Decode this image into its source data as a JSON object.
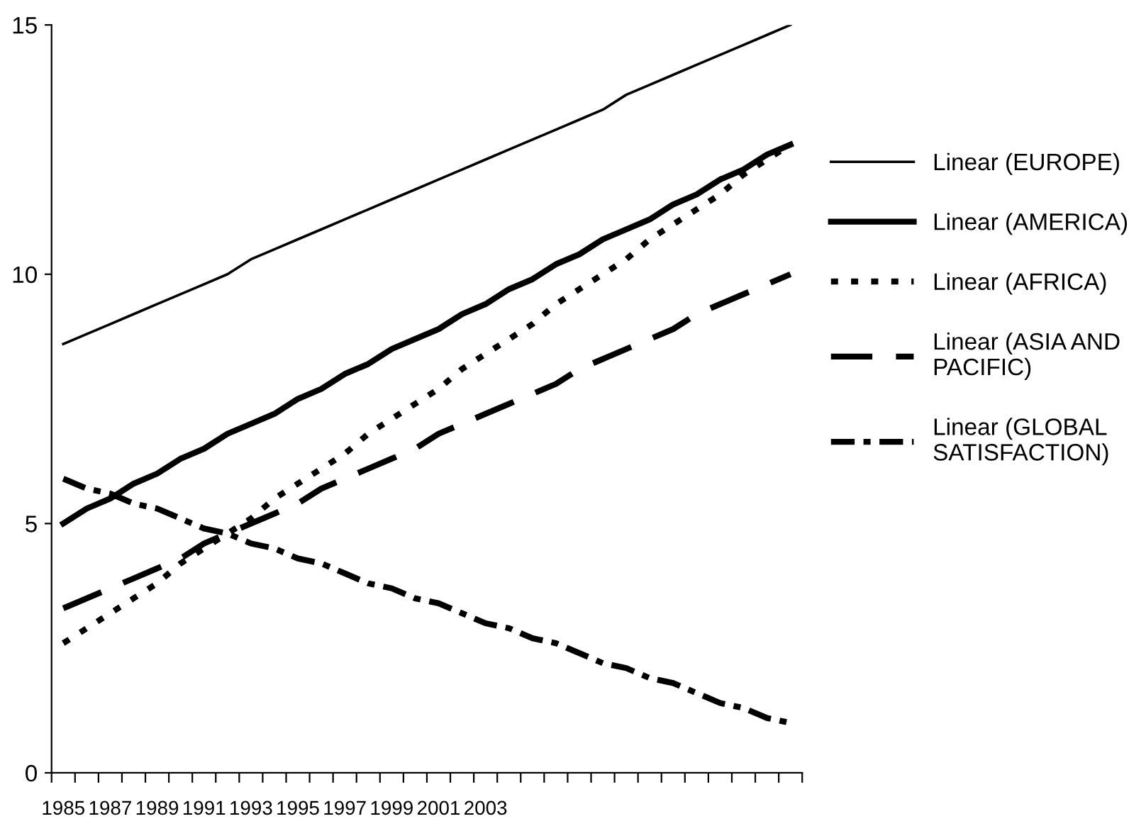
{
  "chart_data": {
    "type": "line",
    "categories": [
      "1985",
      null,
      "1987",
      null,
      "1989",
      null,
      "1991",
      null,
      "1993",
      null,
      "1995",
      null,
      "1997",
      null,
      "1999",
      null,
      "2001",
      null,
      "2003",
      null,
      null,
      null,
      null,
      null,
      null,
      null,
      null,
      null,
      null,
      null,
      null,
      null
    ],
    "series": [
      {
        "name": "Linear (EUROPE)",
        "color": "#000000",
        "line_style": "solid",
        "values": [
          8.6,
          8.8,
          9.0,
          9.2,
          9.4,
          9.6,
          9.8,
          10.0,
          10.3,
          10.5,
          10.7,
          10.9,
          11.1,
          11.3,
          11.5,
          11.7,
          11.9,
          12.1,
          12.3,
          12.5,
          12.7,
          12.9,
          13.1,
          13.3,
          13.6,
          13.8,
          14.0,
          14.2,
          14.4,
          14.6,
          14.8,
          15.0
        ]
      },
      {
        "name": "Linear (AMERICA)",
        "color": "#000000",
        "line_style": "solid",
        "values": [
          5.0,
          5.3,
          5.5,
          5.8,
          6.0,
          6.3,
          6.5,
          6.8,
          7.0,
          7.2,
          7.5,
          7.7,
          8.0,
          8.2,
          8.5,
          8.7,
          8.9,
          9.2,
          9.4,
          9.7,
          9.9,
          10.2,
          10.4,
          10.7,
          10.9,
          11.1,
          11.4,
          11.6,
          11.9,
          12.1,
          12.4,
          12.6
        ]
      },
      {
        "name": "Linear (AFRICA)",
        "color": "#000000",
        "line_style": "dotted",
        "values": [
          2.6,
          2.9,
          3.2,
          3.5,
          3.8,
          4.2,
          4.5,
          4.8,
          5.1,
          5.5,
          5.8,
          6.1,
          6.4,
          6.8,
          7.1,
          7.4,
          7.7,
          8.1,
          8.4,
          8.7,
          9.0,
          9.4,
          9.7,
          10.0,
          10.3,
          10.7,
          11.0,
          11.3,
          11.6,
          12.0,
          12.3,
          12.6
        ]
      },
      {
        "name": "Linear (ASIA AND\nPACIFIC)",
        "color": "#000000",
        "line_style": "dashed",
        "values": [
          3.3,
          3.5,
          3.7,
          3.9,
          4.1,
          4.3,
          4.6,
          4.8,
          5.0,
          5.2,
          5.4,
          5.7,
          5.9,
          6.1,
          6.3,
          6.5,
          6.8,
          7.0,
          7.2,
          7.4,
          7.6,
          7.8,
          8.1,
          8.3,
          8.5,
          8.7,
          8.9,
          9.2,
          9.4,
          9.6,
          9.8,
          10.0
        ]
      },
      {
        "name": "Linear (GLOBAL\nSATISFACTION)",
        "color": "#000000",
        "line_style": "dashdot",
        "values": [
          5.9,
          5.7,
          5.6,
          5.4,
          5.3,
          5.1,
          4.9,
          4.8,
          4.6,
          4.5,
          4.3,
          4.2,
          4.0,
          3.8,
          3.7,
          3.5,
          3.4,
          3.2,
          3.0,
          2.9,
          2.7,
          2.6,
          2.4,
          2.2,
          2.1,
          1.9,
          1.8,
          1.6,
          1.4,
          1.3,
          1.1,
          1.0
        ]
      }
    ],
    "ylim": [
      0,
      15
    ],
    "yticks": [
      0,
      5,
      10,
      15
    ],
    "grid": false,
    "legend": "right",
    "marker": "none"
  }
}
